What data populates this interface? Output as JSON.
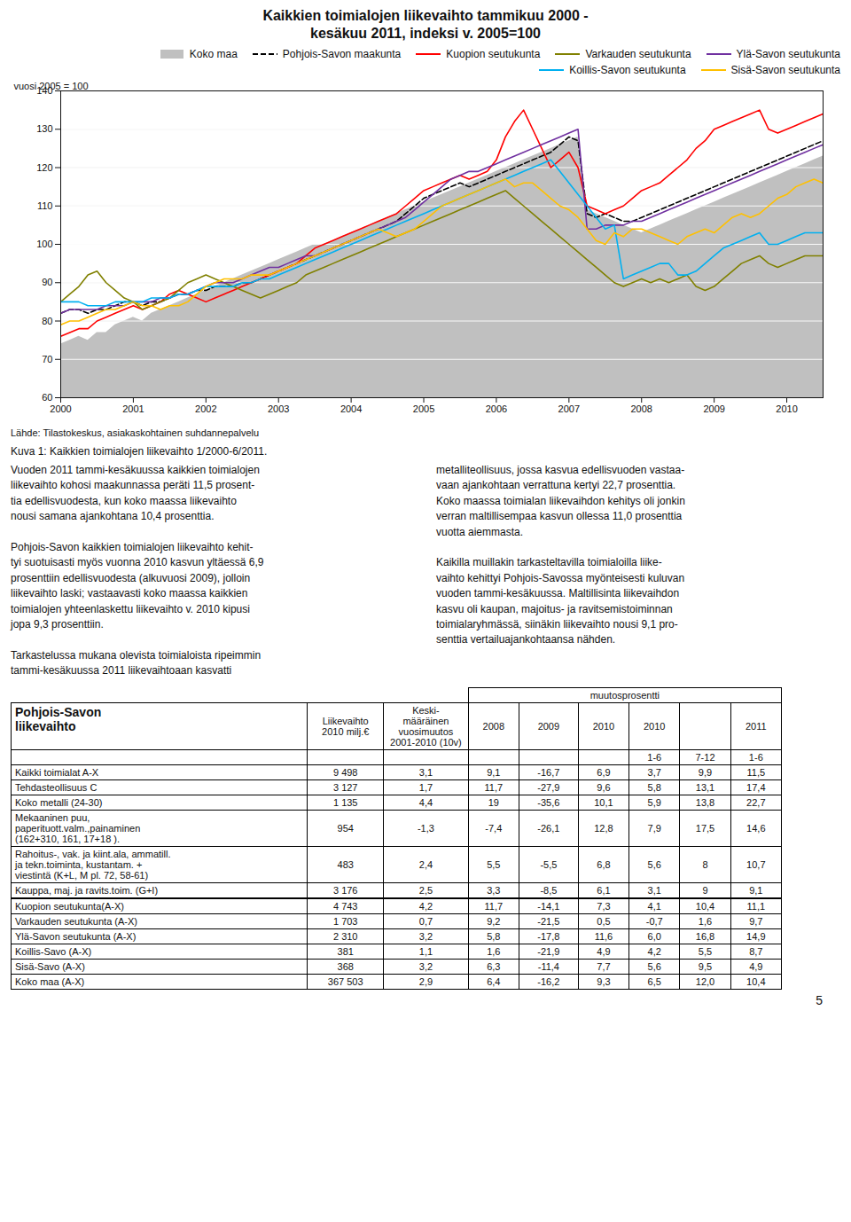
{
  "chart_data": {
    "type": "line",
    "title": "Kaikkien toimialojen liikevaihto tammikuu 2000 -\nkesäkuu 2011, indeksi v. 2005=100",
    "ylabel": "vuosi 2005 = 100",
    "x": [
      2000,
      2000.125,
      2000.25,
      2000.375,
      2000.5,
      2000.625,
      2000.75,
      2000.875,
      2001,
      2001.125,
      2001.25,
      2001.375,
      2001.5,
      2001.625,
      2001.75,
      2001.875,
      2002,
      2002.125,
      2002.25,
      2002.375,
      2002.5,
      2002.625,
      2002.75,
      2002.875,
      2003,
      2003.125,
      2003.25,
      2003.375,
      2003.5,
      2003.625,
      2003.75,
      2003.875,
      2004,
      2004.125,
      2004.25,
      2004.375,
      2004.5,
      2004.625,
      2004.75,
      2004.875,
      2005,
      2005.125,
      2005.25,
      2005.375,
      2005.5,
      2005.625,
      2005.75,
      2005.875,
      2006,
      2006.125,
      2006.25,
      2006.375,
      2006.5,
      2006.625,
      2006.75,
      2006.875,
      2007,
      2007.125,
      2007.25,
      2007.375,
      2007.5,
      2007.625,
      2007.75,
      2007.875,
      2008,
      2008.125,
      2008.25,
      2008.375,
      2008.5,
      2008.625,
      2008.75,
      2008.875,
      2009,
      2009.125,
      2009.25,
      2009.375,
      2009.5,
      2009.625,
      2009.75,
      2009.875,
      2010,
      2010.125,
      2010.25,
      2010.375,
      2010.5
    ],
    "xlim": [
      2000,
      2010.5
    ],
    "xticks": [
      2000,
      2001,
      2002,
      2003,
      2004,
      2005,
      2006,
      2007,
      2008,
      2009,
      2010
    ],
    "ylim": [
      60,
      140
    ],
    "yticks": [
      60,
      70,
      80,
      90,
      100,
      110,
      120,
      130,
      140
    ],
    "grid": true,
    "legend": "upper right",
    "series": [
      {
        "name": "Koko maa",
        "color": "#c0c0c0",
        "type": "area",
        "values": [
          74,
          75,
          76,
          75,
          77,
          77,
          79,
          80,
          81,
          80,
          82,
          83,
          84,
          85,
          86,
          87,
          88,
          89,
          90,
          91,
          92,
          93,
          94,
          95,
          96,
          97,
          98,
          99,
          100,
          100,
          101,
          102,
          103,
          104,
          105,
          106,
          107,
          108,
          109,
          110,
          111,
          112,
          113,
          114,
          115,
          116,
          117,
          118,
          119,
          120,
          121,
          122,
          123,
          124,
          125,
          126,
          127,
          128,
          109,
          108,
          107,
          106,
          105,
          104,
          103,
          104,
          105,
          106,
          107,
          108,
          109,
          110,
          111,
          112,
          113,
          114,
          115,
          116,
          117,
          118,
          119,
          120,
          121,
          122,
          123
        ]
      },
      {
        "name": "Pohjois-Savon maakunta",
        "color": "#000000",
        "type": "line",
        "line_style": "dashed",
        "values": [
          82,
          83,
          83,
          82,
          83,
          83,
          84,
          85,
          85,
          84,
          85,
          85,
          86,
          87,
          87,
          88,
          88,
          89,
          89,
          89,
          90,
          90,
          91,
          92,
          93,
          94,
          95,
          96,
          97,
          98,
          99,
          100,
          101,
          102,
          103,
          104,
          105,
          106,
          108,
          110,
          112,
          113,
          114,
          115,
          116,
          115,
          116,
          117,
          118,
          119,
          120,
          121,
          122,
          123,
          124,
          126,
          128,
          127,
          108,
          107,
          108,
          107,
          106,
          106,
          107,
          108,
          109,
          110,
          111,
          112,
          113,
          114,
          115,
          116,
          117,
          118,
          119,
          120,
          121,
          122,
          123,
          124,
          125,
          126,
          127
        ]
      },
      {
        "name": "Kuopion seutukunta",
        "color": "#ff0000",
        "type": "line",
        "line_style": "solid",
        "values": [
          76,
          77,
          78,
          78,
          80,
          81,
          82,
          83,
          84,
          83,
          84,
          85,
          87,
          88,
          87,
          86,
          85,
          86,
          87,
          88,
          89,
          90,
          91,
          92,
          93,
          94,
          95,
          97,
          99,
          100,
          101,
          102,
          103,
          104,
          105,
          106,
          107,
          108,
          110,
          112,
          114,
          115,
          116,
          117,
          118,
          117,
          118,
          119,
          122,
          128,
          132,
          135,
          130,
          125,
          120,
          122,
          124,
          120,
          110,
          109,
          108,
          109,
          110,
          112,
          114,
          115,
          116,
          118,
          120,
          122,
          125,
          127,
          130,
          131,
          132,
          133,
          134,
          135,
          130,
          129,
          130,
          131,
          132,
          133,
          134
        ]
      },
      {
        "name": "Varkauden seutukunta",
        "color": "#808000",
        "type": "line",
        "line_style": "solid",
        "values": [
          85,
          87,
          89,
          92,
          93,
          90,
          88,
          86,
          85,
          83,
          84,
          85,
          86,
          88,
          90,
          91,
          92,
          91,
          90,
          89,
          88,
          87,
          86,
          87,
          88,
          89,
          90,
          92,
          93,
          94,
          95,
          96,
          97,
          98,
          99,
          100,
          101,
          102,
          103,
          104,
          105,
          106,
          107,
          108,
          109,
          110,
          111,
          112,
          113,
          114,
          112,
          110,
          108,
          106,
          104,
          102,
          100,
          98,
          96,
          94,
          92,
          90,
          89,
          90,
          91,
          90,
          91,
          90,
          91,
          92,
          89,
          88,
          89,
          91,
          93,
          95,
          96,
          97,
          95,
          94,
          95,
          96,
          97,
          97,
          97
        ]
      },
      {
        "name": "Ylä-Savon seutukunta",
        "color": "#7030a0",
        "type": "line",
        "line_style": "solid",
        "values": [
          82,
          83,
          83,
          83,
          83,
          84,
          84,
          84,
          85,
          85,
          85,
          86,
          86,
          87,
          87,
          88,
          89,
          90,
          90,
          90,
          91,
          92,
          93,
          94,
          94,
          95,
          96,
          97,
          97,
          98,
          99,
          100,
          101,
          102,
          103,
          104,
          105,
          106,
          107,
          109,
          111,
          113,
          115,
          117,
          118,
          119,
          119,
          120,
          121,
          122,
          123,
          124,
          125,
          126,
          127,
          128,
          129,
          130,
          104,
          104,
          105,
          105,
          105,
          106,
          106,
          107,
          108,
          109,
          110,
          111,
          112,
          113,
          114,
          115,
          116,
          117,
          118,
          119,
          120,
          121,
          122,
          123,
          124,
          125,
          126
        ]
      },
      {
        "name": "Koillis-Savon seutukunta",
        "color": "#00b0f0",
        "type": "line",
        "line_style": "solid",
        "values": [
          85,
          85,
          85,
          84,
          84,
          84,
          85,
          85,
          85,
          85,
          86,
          86,
          86,
          87,
          87,
          88,
          89,
          89,
          89,
          89,
          90,
          90,
          91,
          91,
          92,
          93,
          94,
          95,
          96,
          97,
          98,
          99,
          100,
          101,
          102,
          103,
          104,
          105,
          106,
          107,
          108,
          109,
          110,
          111,
          112,
          113,
          114,
          115,
          116,
          117,
          118,
          119,
          120,
          121,
          122,
          119,
          116,
          113,
          110,
          107,
          104,
          105,
          91,
          92,
          93,
          94,
          95,
          95,
          92,
          92,
          93,
          95,
          97,
          99,
          100,
          101,
          102,
          103,
          100,
          100,
          101,
          102,
          103,
          103,
          103
        ]
      },
      {
        "name": "Sisä-Savon seutukunta",
        "color": "#ffc000",
        "type": "line",
        "line_style": "solid",
        "values": [
          79,
          80,
          80,
          81,
          82,
          83,
          83,
          84,
          85,
          84,
          84,
          83,
          84,
          84,
          85,
          87,
          89,
          90,
          91,
          91,
          91,
          92,
          92,
          92,
          93,
          94,
          95,
          96,
          97,
          98,
          99,
          100,
          101,
          102,
          103,
          104,
          103,
          102,
          103,
          104,
          106,
          108,
          110,
          111,
          112,
          113,
          114,
          115,
          116,
          117,
          115,
          116,
          116,
          114,
          112,
          110,
          109,
          107,
          104,
          101,
          100,
          103,
          102,
          104,
          104,
          103,
          102,
          101,
          100,
          102,
          103,
          104,
          103,
          105,
          107,
          108,
          107,
          108,
          110,
          112,
          113,
          115,
          116,
          117,
          116
        ]
      }
    ]
  },
  "source": "Lähde: Tilastokeskus, asiakaskohtainen suhdannepalvelu",
  "caption": "Kuva 1: Kaikkien toimialojen liikevaihto 1/2000-6/2011.",
  "text_columns": [
    "Vuoden 2011 tammi-kesäkuussa kaikkien toimialojen\nliikevaihto kohosi maakunnassa peräti 11,5 prosent-\ntia edellisvuodesta, kun koko maassa liikevaihto\nnousi samana ajankohtana 10,4 prosenttia.\n\nPohjois-Savon kaikkien toimialojen liikevaihto kehit-\ntyi suotuisasti myös vuonna 2010 kasvun yltäessä 6,9\nprosenttiin edellisvuodesta (alkuvuosi 2009), jolloin\nliikevaihto laski; vastaavasti koko maassa kaikkien\ntoimialojen yhteenlaskettu liikevaihto v. 2010 kipusi\njopa 9,3 prosenttiin.\n\nTarkastelussa mukana olevista toimialoista ripeimmin\ntammi-kesäkuussa 2011 liikevaihtoaan kasvatti",
    "metalliteollisuus, jossa kasvua edellisvuoden vastaa-\nvaan ajankohtaan verrattuna kertyi 22,7 prosenttia.\nKoko maassa toimialan liikevaihdon kehitys oli jonkin\nverran maltillisempaa kasvun ollessa 11,0 prosenttia\nvuotta aiemmasta.\n\nKaikilla muillakin tarkasteltavilla toimialoilla liike-\nvaihto kehittyi Pohjois-Savossa myönteisesti kuluvan\nvuoden tammi-kesäkuussa. Maltillisinta liikevaihdon\nkasvu oli kaupan, majoitus- ja ravitsemistoiminnan\ntoimialaryhmässä, siinäkin liikevaihto nousi 9,1 pro-\nsenttia vertailuajankohtaansa nähden."
  ],
  "table": {
    "group_label": "muutosprosentti",
    "columns": [
      "Pohjois-Savon\nliikevaihto",
      "Liikevaihto\n2010 milj.€",
      "Keski-\nmääräinen\nvuosimuutos\n2001-2010 (10v)",
      "2008",
      "2009",
      "2010",
      "2010",
      null,
      "2011"
    ],
    "subcolumns": [
      null,
      null,
      null,
      null,
      null,
      null,
      "1-6",
      "7-12",
      "1-6"
    ],
    "rows": [
      [
        "Kaikki toimialat A-X",
        "9 498",
        "3,1",
        "9,1",
        "-16,7",
        "6,9",
        "3,7",
        "9,9",
        "11,5"
      ],
      [
        "Tehdasteollisuus C",
        "3 127",
        "1,7",
        "11,7",
        "-27,9",
        "9,6",
        "5,8",
        "13,1",
        "17,4"
      ],
      [
        "Koko metalli (24-30)",
        "1 135",
        "4,4",
        "19",
        "-35,6",
        "10,1",
        "5,9",
        "13,8",
        "22,7"
      ],
      [
        "Mekaaninen puu,\npaperituott.valm.,painaminen\n(162+310, 161, 17+18 ).",
        "954",
        "-1,3",
        "-7,4",
        "-26,1",
        "12,8",
        "7,9",
        "17,5",
        "14,6"
      ],
      [
        "Rahoitus-, vak. ja kiint.ala, ammatill.\nja tekn.toiminta, kustantam. +\nviestintä (K+L, M pl. 72, 58-61)",
        "483",
        "2,4",
        "5,5",
        "-5,5",
        "6,8",
        "5,6",
        "8",
        "10,7"
      ],
      [
        "Kauppa, maj. ja ravits.toim. (G+I)",
        "3 176",
        "2,5",
        "3,3",
        "-8,5",
        "6,1",
        "3,1",
        "9",
        "9,1"
      ],
      [
        "Kuopion seutukunta(A-X)",
        "4 743",
        "4,2",
        "11,7",
        "-14,1",
        "7,3",
        "4,1",
        "10,4",
        "11,1"
      ],
      [
        "Varkauden seutukunta (A-X)",
        "1 703",
        "0,7",
        "9,2",
        "-21,5",
        "0,5",
        "-0,7",
        "1,6",
        "9,7"
      ],
      [
        "Ylä-Savon seutukunta (A-X)",
        "2 310",
        "3,2",
        "5,8",
        "-17,8",
        "11,6",
        "6,0",
        "16,8",
        "14,9"
      ],
      [
        "Koillis-Savo (A-X)",
        "381",
        "1,1",
        "1,6",
        "-21,9",
        "4,9",
        "4,2",
        "5,5",
        "8,7"
      ],
      [
        "Sisä-Savo (A-X)",
        "368",
        "3,2",
        "6,3",
        "-11,4",
        "7,7",
        "5,6",
        "9,5",
        "4,9"
      ],
      [
        "Koko maa (A-X)",
        "367 503",
        "2,9",
        "6,4",
        "-16,2",
        "9,3",
        "6,5",
        "12,0",
        "10,4"
      ]
    ]
  },
  "page_number": "5"
}
